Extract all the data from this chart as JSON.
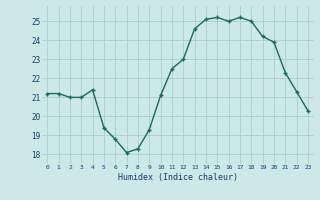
{
  "x": [
    0,
    1,
    2,
    3,
    4,
    5,
    6,
    7,
    8,
    9,
    10,
    11,
    12,
    13,
    14,
    15,
    16,
    17,
    18,
    19,
    20,
    21,
    22,
    23
  ],
  "y": [
    21.2,
    21.2,
    21.0,
    21.0,
    21.4,
    19.4,
    18.8,
    18.1,
    18.3,
    19.3,
    21.1,
    22.5,
    23.0,
    24.6,
    25.1,
    25.2,
    25.0,
    25.2,
    25.0,
    24.2,
    23.9,
    22.3,
    21.3,
    20.3
  ],
  "xlabel": "Humidex (Indice chaleur)",
  "ylabel": "",
  "xlim": [
    -0.5,
    23.5
  ],
  "ylim": [
    17.5,
    25.8
  ],
  "yticks": [
    18,
    19,
    20,
    21,
    22,
    23,
    24,
    25
  ],
  "xticks": [
    0,
    1,
    2,
    3,
    4,
    5,
    6,
    7,
    8,
    9,
    10,
    11,
    12,
    13,
    14,
    15,
    16,
    17,
    18,
    19,
    20,
    21,
    22,
    23
  ],
  "line_color": "#1a6b5a",
  "marker": "+",
  "bg_color": "#cce8e8",
  "grid_color": "#aacfcf",
  "tick_color": "#1a3a6b",
  "label_color": "#1a3a6b"
}
